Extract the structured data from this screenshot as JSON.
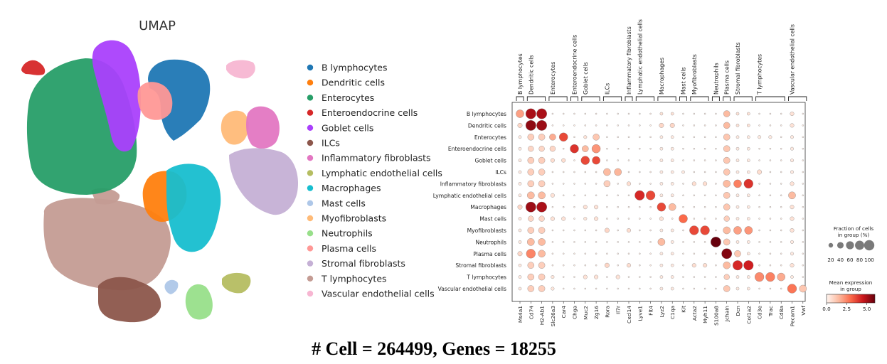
{
  "caption": "# Cell =  264499, Genes = 18255",
  "chart_data": [
    {
      "type": "scatter",
      "title": "UMAP",
      "legend": "right",
      "series": [
        {
          "name": "B lymphocytes",
          "color": "#1f77b4"
        },
        {
          "name": "Dendritic cells",
          "color": "#ff7f0e"
        },
        {
          "name": "Enterocytes",
          "color": "#279e68"
        },
        {
          "name": "Enteroendocrine cells",
          "color": "#d62728"
        },
        {
          "name": "Goblet cells",
          "color": "#aa40fc"
        },
        {
          "name": "ILCs",
          "color": "#8c564b"
        },
        {
          "name": "Inflammatory fibroblasts",
          "color": "#e377c2"
        },
        {
          "name": "Lymphatic endothelial cells",
          "color": "#b5bd61"
        },
        {
          "name": "Macrophages",
          "color": "#17becf"
        },
        {
          "name": "Mast cells",
          "color": "#aec7e8"
        },
        {
          "name": "Myofibroblasts",
          "color": "#ffbb78"
        },
        {
          "name": "Neutrophils",
          "color": "#98df8a"
        },
        {
          "name": "Plasma cells",
          "color": "#ff9896"
        },
        {
          "name": "Stromal fibroblasts",
          "color": "#c5b0d5"
        },
        {
          "name": "T lymphocytes",
          "color": "#c49c94"
        },
        {
          "name": "Vascular endothelial cells",
          "color": "#f7b6d2"
        }
      ]
    },
    {
      "type": "dotplot",
      "rows": [
        "B lymphocytes",
        "Dendritic cells",
        "Enterocytes",
        "Enteroendocrine cells",
        "Goblet cells",
        "ILCs",
        "Inflammatory fibroblasts",
        "Lymphatic endothelial cells",
        "Macrophages",
        "Mast cells",
        "Myofibroblasts",
        "Neutrophils",
        "Plasma cells",
        "Stromal fibroblasts",
        "T lymphocytes",
        "Vascular endothelial cells"
      ],
      "genes": [
        "Ms4a1",
        "Cd74",
        "H2-Ab1",
        "Slc26a3",
        "Car4",
        "Chga",
        "Muc2",
        "Zg16",
        "Rora",
        "Il7r",
        "Cxcl14",
        "Lyve1",
        "Flt4",
        "Lyz2",
        "C1qa",
        "Kit",
        "Acta2",
        "Myh11",
        "S100a8",
        "Jchain",
        "Dcn",
        "Col1a2",
        "Cd3e",
        "Trac",
        "Cd8a",
        "Pecam1",
        "Vwf"
      ],
      "groups": [
        {
          "label": "B lymphocytes",
          "genes": [
            "Ms4a1"
          ]
        },
        {
          "label": "Dendritic cells",
          "genes": [
            "Cd74",
            "H2-Ab1"
          ]
        },
        {
          "label": "Enterocytes",
          "genes": [
            "Slc26a3",
            "Car4"
          ]
        },
        {
          "label": "Enteroendocrine cells",
          "genes": [
            "Chga"
          ]
        },
        {
          "label": "Goblet cells",
          "genes": [
            "Muc2",
            "Zg16"
          ]
        },
        {
          "label": "ILCs",
          "genes": [
            "Rora",
            "Il7r"
          ]
        },
        {
          "label": "Inflammatory fibroblasts",
          "genes": [
            "Cxcl14"
          ]
        },
        {
          "label": "Lymphatic endothelial cells",
          "genes": [
            "Lyve1",
            "Flt4"
          ]
        },
        {
          "label": "Macrophages",
          "genes": [
            "Lyz2",
            "C1qa"
          ]
        },
        {
          "label": "Mast cells",
          "genes": [
            "Kit"
          ]
        },
        {
          "label": "Myofibroblasts",
          "genes": [
            "Acta2",
            "Myh11"
          ]
        },
        {
          "label": "Neutrophils",
          "genes": [
            "S100a8"
          ]
        },
        {
          "label": "Plasma cells",
          "genes": [
            "Jchain"
          ]
        },
        {
          "label": "Stromal fibroblasts",
          "genes": [
            "Dcn",
            "Col1a2"
          ]
        },
        {
          "label": "T lymphocytes",
          "genes": [
            "Cd3e",
            "Trac",
            "Cd8a"
          ]
        },
        {
          "label": "Vascular endothelial cells",
          "genes": [
            "Pecam1",
            "Vwf"
          ]
        }
      ],
      "fraction_legend": {
        "title": "Fraction of cells\nin group (%)",
        "ticks": [
          20,
          40,
          60,
          80,
          100
        ]
      },
      "color_legend": {
        "title": "Mean expression\nin group",
        "ticks": [
          0.0,
          2.5,
          5.0
        ],
        "tick_labels": [
          "0.0",
          "2.5",
          "5.0"
        ],
        "range": [
          0,
          6
        ]
      },
      "fraction": [
        [
          60,
          100,
          100,
          2,
          2,
          2,
          2,
          2,
          2,
          2,
          2,
          2,
          2,
          8,
          8,
          2,
          2,
          2,
          2,
          40,
          8,
          8,
          2,
          2,
          2,
          15,
          2
        ],
        [
          20,
          100,
          100,
          2,
          2,
          2,
          2,
          2,
          2,
          2,
          2,
          2,
          2,
          20,
          20,
          2,
          2,
          2,
          2,
          40,
          8,
          8,
          2,
          2,
          2,
          15,
          2
        ],
        [
          8,
          40,
          40,
          40,
          70,
          2,
          10,
          40,
          2,
          2,
          2,
          2,
          2,
          8,
          8,
          2,
          2,
          2,
          2,
          40,
          8,
          8,
          10,
          10,
          2,
          10,
          2
        ],
        [
          8,
          30,
          30,
          30,
          2,
          70,
          40,
          70,
          2,
          2,
          2,
          2,
          2,
          8,
          8,
          2,
          2,
          2,
          2,
          40,
          8,
          8,
          2,
          2,
          2,
          10,
          2
        ],
        [
          8,
          40,
          40,
          15,
          15,
          2,
          70,
          60,
          2,
          2,
          2,
          2,
          2,
          8,
          8,
          2,
          2,
          2,
          2,
          40,
          8,
          8,
          2,
          2,
          2,
          10,
          2
        ],
        [
          8,
          40,
          40,
          2,
          2,
          2,
          2,
          2,
          50,
          50,
          2,
          2,
          2,
          8,
          8,
          8,
          2,
          2,
          2,
          40,
          8,
          8,
          20,
          2,
          2,
          10,
          2
        ],
        [
          8,
          40,
          40,
          2,
          2,
          2,
          2,
          2,
          40,
          2,
          15,
          2,
          2,
          8,
          8,
          2,
          15,
          15,
          2,
          50,
          60,
          80,
          2,
          2,
          2,
          15,
          2
        ],
        [
          8,
          50,
          50,
          15,
          2,
          2,
          2,
          2,
          2,
          2,
          2,
          90,
          80,
          8,
          8,
          2,
          2,
          2,
          2,
          40,
          8,
          8,
          2,
          2,
          2,
          50,
          2
        ],
        [
          20,
          100,
          100,
          2,
          2,
          2,
          15,
          15,
          2,
          2,
          2,
          2,
          2,
          70,
          50,
          2,
          2,
          2,
          2,
          40,
          8,
          8,
          2,
          2,
          2,
          15,
          2
        ],
        [
          8,
          30,
          30,
          15,
          15,
          2,
          10,
          15,
          2,
          2,
          2,
          2,
          2,
          15,
          2,
          70,
          2,
          2,
          2,
          30,
          8,
          8,
          2,
          2,
          2,
          15,
          2
        ],
        [
          8,
          40,
          40,
          2,
          2,
          2,
          2,
          2,
          20,
          2,
          15,
          2,
          2,
          8,
          8,
          2,
          80,
          80,
          2,
          50,
          60,
          60,
          2,
          2,
          2,
          15,
          2
        ],
        [
          8,
          50,
          50,
          2,
          2,
          2,
          2,
          2,
          2,
          2,
          2,
          2,
          2,
          50,
          8,
          2,
          2,
          2,
          100,
          40,
          8,
          8,
          2,
          2,
          2,
          10,
          2
        ],
        [
          20,
          80,
          50,
          2,
          2,
          2,
          2,
          2,
          2,
          2,
          2,
          2,
          2,
          8,
          8,
          2,
          2,
          2,
          2,
          100,
          40,
          8,
          2,
          2,
          2,
          10,
          2
        ],
        [
          8,
          40,
          40,
          2,
          2,
          2,
          2,
          2,
          20,
          2,
          15,
          2,
          2,
          8,
          8,
          2,
          15,
          15,
          2,
          50,
          90,
          90,
          2,
          2,
          2,
          15,
          2
        ],
        [
          8,
          40,
          40,
          10,
          2,
          2,
          15,
          15,
          2,
          15,
          2,
          2,
          2,
          8,
          8,
          2,
          2,
          2,
          2,
          30,
          8,
          8,
          80,
          80,
          60,
          8,
          2
        ],
        [
          8,
          40,
          40,
          10,
          2,
          2,
          2,
          2,
          2,
          2,
          2,
          2,
          2,
          8,
          8,
          2,
          2,
          2,
          2,
          40,
          8,
          8,
          2,
          2,
          2,
          80,
          50
        ]
      ],
      "expression": [
        [
          2.0,
          5.0,
          5.0,
          0.2,
          0.2,
          0.2,
          0.2,
          0.2,
          0.2,
          0.2,
          0.2,
          0.2,
          0.2,
          0.5,
          0.5,
          0.2,
          0.2,
          0.2,
          0.2,
          1.5,
          0.5,
          0.5,
          0.2,
          0.2,
          0.2,
          0.5,
          0.2
        ],
        [
          0.8,
          5.4,
          5.2,
          0.2,
          0.2,
          0.2,
          0.2,
          0.2,
          0.2,
          0.2,
          0.2,
          0.2,
          0.2,
          0.8,
          0.8,
          0.2,
          0.2,
          0.2,
          0.2,
          1.5,
          0.5,
          0.5,
          0.2,
          0.2,
          0.2,
          0.5,
          0.2
        ],
        [
          0.3,
          1.0,
          1.0,
          1.8,
          3.6,
          0.2,
          0.5,
          1.2,
          0.2,
          0.2,
          0.2,
          0.2,
          0.2,
          0.3,
          0.3,
          0.2,
          0.2,
          0.2,
          0.2,
          1.2,
          0.3,
          0.3,
          0.3,
          0.3,
          0.2,
          0.3,
          0.2
        ],
        [
          0.3,
          0.8,
          0.8,
          0.8,
          0.2,
          4.0,
          1.5,
          2.2,
          0.2,
          0.2,
          0.2,
          0.2,
          0.2,
          0.3,
          0.3,
          0.2,
          0.2,
          0.2,
          0.2,
          1.2,
          0.3,
          0.3,
          0.2,
          0.2,
          0.2,
          0.3,
          0.2
        ],
        [
          0.3,
          1.0,
          1.0,
          0.6,
          0.6,
          0.2,
          3.6,
          3.6,
          0.2,
          0.2,
          0.2,
          0.2,
          0.2,
          0.3,
          0.3,
          0.2,
          0.2,
          0.2,
          0.2,
          1.2,
          0.3,
          0.3,
          0.2,
          0.2,
          0.2,
          0.3,
          0.2
        ],
        [
          0.3,
          1.0,
          1.0,
          0.2,
          0.2,
          0.2,
          0.2,
          0.2,
          1.5,
          1.6,
          0.2,
          0.2,
          0.2,
          0.3,
          0.3,
          0.3,
          0.2,
          0.2,
          0.2,
          1.2,
          0.3,
          0.3,
          0.6,
          0.2,
          0.2,
          0.3,
          0.2
        ],
        [
          0.3,
          1.0,
          1.0,
          0.2,
          0.2,
          0.2,
          0.2,
          0.2,
          1.0,
          0.2,
          0.6,
          0.2,
          0.2,
          0.3,
          0.3,
          0.2,
          0.6,
          0.6,
          0.2,
          1.5,
          2.6,
          4.0,
          0.2,
          0.2,
          0.2,
          0.5,
          0.2
        ],
        [
          0.3,
          1.5,
          1.5,
          0.5,
          0.2,
          0.2,
          0.2,
          0.2,
          0.2,
          0.2,
          0.2,
          4.2,
          3.6,
          0.3,
          0.3,
          0.2,
          0.2,
          0.2,
          0.2,
          1.2,
          0.3,
          0.3,
          0.2,
          0.2,
          0.2,
          1.5,
          0.2
        ],
        [
          0.8,
          5.2,
          5.0,
          0.2,
          0.2,
          0.2,
          0.5,
          0.5,
          0.2,
          0.2,
          0.2,
          0.2,
          0.2,
          3.6,
          1.5,
          0.2,
          0.2,
          0.2,
          0.2,
          1.2,
          0.3,
          0.3,
          0.2,
          0.2,
          0.2,
          0.5,
          0.2
        ],
        [
          0.3,
          0.8,
          0.8,
          0.5,
          0.5,
          0.2,
          0.4,
          0.5,
          0.2,
          0.2,
          0.2,
          0.2,
          0.2,
          0.5,
          0.2,
          3.0,
          0.2,
          0.2,
          0.2,
          1.0,
          0.3,
          0.3,
          0.2,
          0.2,
          0.2,
          0.5,
          0.2
        ],
        [
          0.3,
          1.0,
          1.0,
          0.2,
          0.2,
          0.2,
          0.2,
          0.2,
          0.8,
          0.2,
          0.6,
          0.2,
          0.2,
          0.3,
          0.3,
          0.2,
          3.6,
          3.6,
          0.2,
          1.5,
          2.0,
          2.2,
          0.2,
          0.2,
          0.2,
          0.5,
          0.2
        ],
        [
          0.3,
          1.5,
          1.5,
          0.2,
          0.2,
          0.2,
          0.2,
          0.2,
          0.2,
          0.2,
          0.2,
          0.2,
          0.2,
          1.5,
          0.3,
          0.2,
          0.2,
          0.2,
          6.0,
          1.2,
          0.3,
          0.3,
          0.2,
          0.2,
          0.2,
          0.3,
          0.2
        ],
        [
          0.8,
          2.5,
          1.5,
          0.2,
          0.2,
          0.2,
          0.2,
          0.2,
          0.2,
          0.2,
          0.2,
          0.2,
          0.2,
          0.3,
          0.3,
          0.2,
          0.2,
          0.2,
          0.2,
          5.6,
          1.2,
          0.3,
          0.2,
          0.2,
          0.2,
          0.3,
          0.2
        ],
        [
          0.3,
          1.0,
          1.0,
          0.2,
          0.2,
          0.2,
          0.2,
          0.2,
          0.8,
          0.2,
          0.6,
          0.2,
          0.2,
          0.3,
          0.3,
          0.2,
          0.6,
          0.6,
          0.2,
          1.5,
          4.2,
          4.4,
          0.2,
          0.2,
          0.2,
          0.5,
          0.2
        ],
        [
          0.3,
          1.0,
          1.0,
          0.4,
          0.2,
          0.2,
          0.5,
          0.5,
          0.2,
          0.5,
          0.2,
          0.2,
          0.2,
          0.3,
          0.3,
          0.2,
          0.2,
          0.2,
          0.2,
          1.0,
          0.3,
          0.3,
          2.4,
          2.6,
          1.8,
          0.3,
          0.2
        ],
        [
          0.3,
          1.0,
          1.0,
          0.4,
          0.2,
          0.2,
          0.2,
          0.2,
          0.2,
          0.2,
          0.2,
          0.2,
          0.2,
          0.3,
          0.3,
          0.2,
          0.2,
          0.2,
          0.2,
          1.2,
          0.3,
          0.3,
          0.2,
          0.2,
          0.2,
          2.8,
          1.2
        ]
      ]
    }
  ]
}
